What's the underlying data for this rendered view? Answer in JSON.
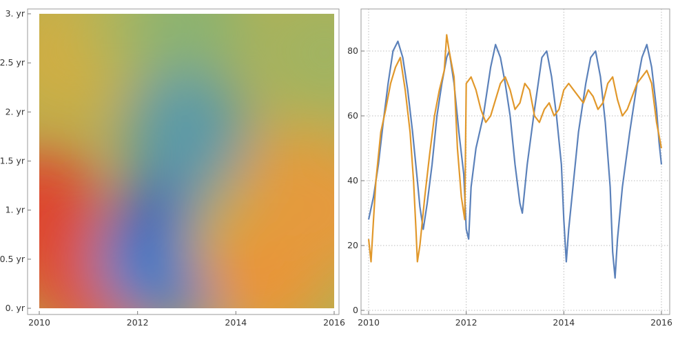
{
  "chart_data": [
    {
      "type": "heatmap",
      "title": "",
      "xlabel": "",
      "ylabel": "",
      "x_ticks": [
        "2010",
        "2012",
        "2014",
        "2016"
      ],
      "y_ticks": [
        "0. yr",
        "0.5 yr",
        "1. yr",
        "1.5 yr",
        "2. yr",
        "2.5 yr",
        "3. yr"
      ],
      "xlim": [
        2010,
        2016
      ],
      "ylim": [
        0,
        3
      ],
      "colormap": [
        "#d92a2a",
        "#ee9038",
        "#c9b646",
        "#79b27e",
        "#3f82d0",
        "#2a36b0"
      ],
      "regions": [
        {
          "x": 2010.0,
          "y": 1.0,
          "level": 0.05
        },
        {
          "x": 2010.6,
          "y": 0.5,
          "level": 0.05
        },
        {
          "x": 2011.3,
          "y": 0.2,
          "level": 0.08
        },
        {
          "x": 2010.6,
          "y": 2.6,
          "level": 0.35
        },
        {
          "x": 2012.0,
          "y": 2.9,
          "level": 0.45
        },
        {
          "x": 2013.0,
          "y": 2.9,
          "level": 0.55
        },
        {
          "x": 2012.4,
          "y": 0.5,
          "level": 0.78
        },
        {
          "x": 2013.0,
          "y": 1.0,
          "level": 0.95
        },
        {
          "x": 2013.4,
          "y": 0.5,
          "level": 0.85
        },
        {
          "x": 2013.0,
          "y": 1.8,
          "level": 0.7
        },
        {
          "x": 2014.2,
          "y": 0.7,
          "level": 0.45
        },
        {
          "x": 2014.6,
          "y": 0.35,
          "level": 0.22
        },
        {
          "x": 2015.2,
          "y": 1.2,
          "level": 0.28
        },
        {
          "x": 2015.9,
          "y": 1.0,
          "level": 0.25
        },
        {
          "x": 2015.8,
          "y": 2.6,
          "level": 0.5
        }
      ]
    },
    {
      "type": "line",
      "title": "",
      "xlabel": "",
      "ylabel": "",
      "x_ticks": [
        "2010",
        "2012",
        "2014",
        "2016"
      ],
      "y_ticks": [
        "0",
        "20",
        "40",
        "60",
        "80"
      ],
      "xlim": [
        2010,
        2016
      ],
      "ylim": [
        0,
        90
      ],
      "grid": true,
      "colors": [
        "#5b81ba",
        "#e1982b"
      ],
      "series": [
        {
          "values": [
            [
              2010.0,
              28
            ],
            [
              2010.1,
              35
            ],
            [
              2010.2,
              45
            ],
            [
              2010.3,
              58
            ],
            [
              2010.4,
              70
            ],
            [
              2010.5,
              80
            ],
            [
              2010.6,
              83
            ],
            [
              2010.7,
              78
            ],
            [
              2010.8,
              68
            ],
            [
              2010.9,
              55
            ],
            [
              2011.0,
              40
            ],
            [
              2011.05,
              32
            ],
            [
              2011.12,
              25
            ],
            [
              2011.2,
              33
            ],
            [
              2011.3,
              45
            ],
            [
              2011.4,
              60
            ],
            [
              2011.5,
              70
            ],
            [
              2011.6,
              78
            ],
            [
              2011.65,
              80
            ],
            [
              2011.75,
              70
            ],
            [
              2011.85,
              55
            ],
            [
              2011.95,
              42
            ],
            [
              2012.0,
              25
            ],
            [
              2012.05,
              22
            ],
            [
              2012.1,
              38
            ],
            [
              2012.2,
              50
            ],
            [
              2012.35,
              60
            ],
            [
              2012.5,
              75
            ],
            [
              2012.6,
              82
            ],
            [
              2012.7,
              78
            ],
            [
              2012.8,
              70
            ],
            [
              2012.9,
              60
            ],
            [
              2013.0,
              45
            ],
            [
              2013.1,
              33
            ],
            [
              2013.15,
              30
            ],
            [
              2013.25,
              45
            ],
            [
              2013.4,
              62
            ],
            [
              2013.55,
              78
            ],
            [
              2013.65,
              80
            ],
            [
              2013.75,
              72
            ],
            [
              2013.85,
              60
            ],
            [
              2013.95,
              45
            ],
            [
              2014.0,
              28
            ],
            [
              2014.05,
              15
            ],
            [
              2014.1,
              25
            ],
            [
              2014.2,
              40
            ],
            [
              2014.3,
              55
            ],
            [
              2014.45,
              70
            ],
            [
              2014.55,
              78
            ],
            [
              2014.65,
              80
            ],
            [
              2014.75,
              72
            ],
            [
              2014.85,
              58
            ],
            [
              2014.95,
              38
            ],
            [
              2015.0,
              18
            ],
            [
              2015.05,
              10
            ],
            [
              2015.1,
              22
            ],
            [
              2015.2,
              38
            ],
            [
              2015.35,
              55
            ],
            [
              2015.5,
              70
            ],
            [
              2015.6,
              78
            ],
            [
              2015.7,
              82
            ],
            [
              2015.8,
              75
            ],
            [
              2015.9,
              62
            ],
            [
              2015.95,
              52
            ],
            [
              2016.0,
              45
            ]
          ]
        },
        {
          "values": [
            [
              2010.0,
              22
            ],
            [
              2010.05,
              15
            ],
            [
              2010.1,
              28
            ],
            [
              2010.15,
              40
            ],
            [
              2010.25,
              55
            ],
            [
              2010.35,
              62
            ],
            [
              2010.45,
              70
            ],
            [
              2010.55,
              75
            ],
            [
              2010.65,
              78
            ],
            [
              2010.75,
              68
            ],
            [
              2010.85,
              55
            ],
            [
              2010.92,
              40
            ],
            [
              2010.97,
              25
            ],
            [
              2011.0,
              15
            ],
            [
              2011.05,
              20
            ],
            [
              2011.15,
              35
            ],
            [
              2011.25,
              48
            ],
            [
              2011.35,
              60
            ],
            [
              2011.45,
              68
            ],
            [
              2011.55,
              74
            ],
            [
              2011.6,
              85
            ],
            [
              2011.65,
              80
            ],
            [
              2011.75,
              72
            ],
            [
              2011.82,
              50
            ],
            [
              2011.9,
              35
            ],
            [
              2011.97,
              28
            ],
            [
              2012.0,
              70
            ],
            [
              2012.1,
              72
            ],
            [
              2012.2,
              68
            ],
            [
              2012.3,
              62
            ],
            [
              2012.4,
              58
            ],
            [
              2012.5,
              60
            ],
            [
              2012.6,
              65
            ],
            [
              2012.7,
              70
            ],
            [
              2012.8,
              72
            ],
            [
              2012.9,
              68
            ],
            [
              2013.0,
              62
            ],
            [
              2013.1,
              64
            ],
            [
              2013.2,
              70
            ],
            [
              2013.3,
              68
            ],
            [
              2013.4,
              60
            ],
            [
              2013.5,
              58
            ],
            [
              2013.6,
              62
            ],
            [
              2013.7,
              64
            ],
            [
              2013.8,
              60
            ],
            [
              2013.9,
              62
            ],
            [
              2014.0,
              68
            ],
            [
              2014.1,
              70
            ],
            [
              2014.2,
              68
            ],
            [
              2014.3,
              66
            ],
            [
              2014.4,
              64
            ],
            [
              2014.5,
              68
            ],
            [
              2014.6,
              66
            ],
            [
              2014.7,
              62
            ],
            [
              2014.8,
              64
            ],
            [
              2014.9,
              70
            ],
            [
              2015.0,
              72
            ],
            [
              2015.1,
              65
            ],
            [
              2015.2,
              60
            ],
            [
              2015.3,
              62
            ],
            [
              2015.4,
              66
            ],
            [
              2015.5,
              70
            ],
            [
              2015.6,
              72
            ],
            [
              2015.7,
              74
            ],
            [
              2015.8,
              70
            ],
            [
              2015.9,
              58
            ],
            [
              2016.0,
              50
            ]
          ]
        }
      ]
    }
  ]
}
